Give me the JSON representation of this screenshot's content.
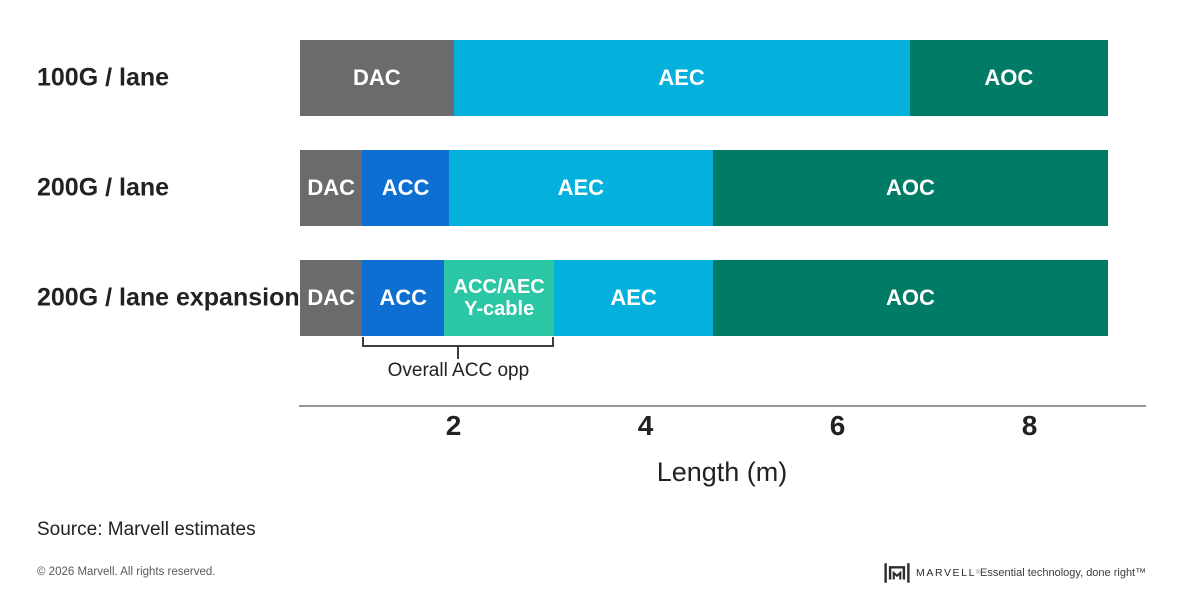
{
  "colors": {
    "DAC": "#6a6b6d",
    "ACC": "#0d6fd2",
    "AEC": "#04b0dc",
    "AOC": "#007c66",
    "Y": "#2bc6a3",
    "axis": "#95979a",
    "bracket": "#3d3d3d",
    "text": "#232122"
  },
  "chart_data": {
    "type": "bar",
    "subtype": "horizontal-stacked-range-arrows",
    "title": "",
    "xlabel": "Length (m)",
    "unit": "m",
    "x_ticks": [
      2,
      4,
      6,
      8
    ],
    "x_range_m": [
      0.4,
      9.2
    ],
    "grid": false,
    "legend": false,
    "rows": [
      {
        "label": "100G / lane",
        "segments": [
          {
            "label": "DAC",
            "color": "DAC",
            "start_m": 0.4,
            "end_m": 2.0
          },
          {
            "label": "AEC",
            "color": "AEC",
            "start_m": 2.0,
            "end_m": 6.75
          },
          {
            "label": "AOC",
            "color": "AOC",
            "start_m": 6.75,
            "end_m": 9.2,
            "arrow": true
          }
        ]
      },
      {
        "label": "200G / lane",
        "segments": [
          {
            "label": "DAC",
            "color": "DAC",
            "start_m": 0.4,
            "end_m": 1.05
          },
          {
            "label": "ACC",
            "color": "ACC",
            "start_m": 1.05,
            "end_m": 1.95
          },
          {
            "label": "AEC",
            "color": "AEC",
            "start_m": 1.95,
            "end_m": 4.7
          },
          {
            "label": "AOC",
            "color": "AOC",
            "start_m": 4.7,
            "end_m": 9.2,
            "arrow": true
          }
        ]
      },
      {
        "label": "200G / lane expansion",
        "segments": [
          {
            "label": "DAC",
            "color": "DAC",
            "start_m": 0.4,
            "end_m": 1.05
          },
          {
            "label": "ACC",
            "color": "ACC",
            "start_m": 1.05,
            "end_m": 1.9
          },
          {
            "label": "ACC/AEC\nY-cable",
            "color": "Y",
            "start_m": 1.9,
            "end_m": 3.05
          },
          {
            "label": "AEC",
            "color": "AEC",
            "start_m": 3.05,
            "end_m": 4.7
          },
          {
            "label": "AOC",
            "color": "AOC",
            "start_m": 4.7,
            "end_m": 9.2,
            "arrow": true
          }
        ]
      }
    ],
    "annotation": {
      "label": "Overall ACC opp",
      "start_m": 1.05,
      "end_m": 3.05,
      "row": "200G / lane expansion"
    }
  },
  "source": "Source: Marvell estimates",
  "footer": {
    "copyright": "© 2026 Marvell. All rights reserved.",
    "brand": "MARVELL",
    "brand_mark": "®",
    "tagline": "Essential technology, done right™"
  }
}
